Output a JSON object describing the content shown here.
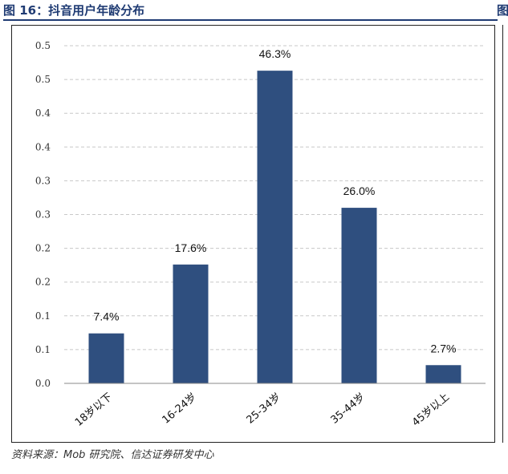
{
  "figure": {
    "title": "图 16：抖音用户年龄分布",
    "title_right_fragment": "图",
    "source": "资料来源：Mob 研究院、信达证券研发中心"
  },
  "chart_data": {
    "type": "bar",
    "title": "",
    "xlabel": "",
    "ylabel": "",
    "categories": [
      "18岁以下",
      "16-24岁",
      "25-34岁",
      "35-44岁",
      "45岁以上"
    ],
    "values": [
      0.074,
      0.176,
      0.463,
      0.26,
      0.027
    ],
    "data_labels": [
      "7.4%",
      "17.6%",
      "46.3%",
      "26.0%",
      "2.7%"
    ],
    "y_tick_labels": [
      "0.0",
      "0.1",
      "0.1",
      "0.2",
      "0.2",
      "0.3",
      "0.3",
      "0.4",
      "0.4",
      "0.5",
      "0.5"
    ],
    "ylim": [
      0,
      0.5
    ],
    "grid": true,
    "bar_color": "#2f4f7f",
    "grid_color": "#c8c8c8"
  }
}
